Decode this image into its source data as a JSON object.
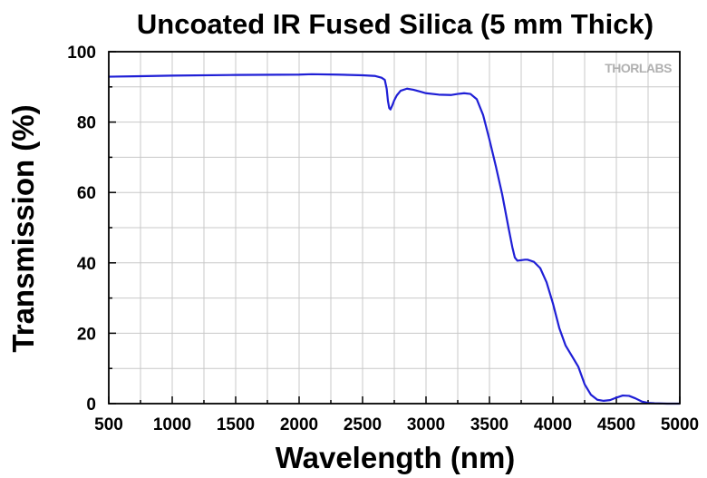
{
  "logo": "THORLABS",
  "chart_data": {
    "type": "line",
    "title": "Uncoated IR Fused Silica (5 mm Thick)",
    "xlabel": "Wavelength (nm)",
    "ylabel": "Transmission (%)",
    "xlim": [
      500,
      5000
    ],
    "ylim": [
      0,
      100
    ],
    "xticks": [
      500,
      1000,
      1500,
      2000,
      2500,
      3000,
      3500,
      4000,
      4500,
      5000
    ],
    "yticks": [
      0,
      20,
      40,
      60,
      80,
      100
    ],
    "grid": true,
    "series_color": "#1f1fd6",
    "series": [
      {
        "x": [
          500,
          700,
          1000,
          1500,
          2000,
          2100,
          2300,
          2500,
          2600,
          2650,
          2675,
          2690,
          2700,
          2710,
          2720,
          2735,
          2750,
          2770,
          2800,
          2850,
          2900,
          2950,
          3000,
          3100,
          3200,
          3250,
          3300,
          3350,
          3400,
          3450,
          3500,
          3550,
          3600,
          3650,
          3680,
          3700,
          3720,
          3740,
          3760,
          3780,
          3800,
          3850,
          3900,
          3950,
          4000,
          4050,
          4100,
          4150,
          4200,
          4250,
          4300,
          4350,
          4400,
          4450,
          4500,
          4550,
          4600,
          4650,
          4700,
          4750,
          4800,
          4900,
          5000
        ],
        "y": [
          92.9,
          93.0,
          93.2,
          93.4,
          93.5,
          93.6,
          93.5,
          93.3,
          93.1,
          92.6,
          92.0,
          89.5,
          86.0,
          84.0,
          83.6,
          84.8,
          86.2,
          87.6,
          88.9,
          89.5,
          89.2,
          88.7,
          88.2,
          87.8,
          87.7,
          88.0,
          88.2,
          88.0,
          86.5,
          82.0,
          75.0,
          67.5,
          59.5,
          50.0,
          44.5,
          41.5,
          40.6,
          40.7,
          40.8,
          40.9,
          40.9,
          40.3,
          38.5,
          34.5,
          28.5,
          21.5,
          16.5,
          13.5,
          10.5,
          5.5,
          2.5,
          1.1,
          0.8,
          1.0,
          1.7,
          2.3,
          2.2,
          1.5,
          0.6,
          0.2,
          0.1,
          0.0,
          0.0
        ]
      }
    ]
  }
}
